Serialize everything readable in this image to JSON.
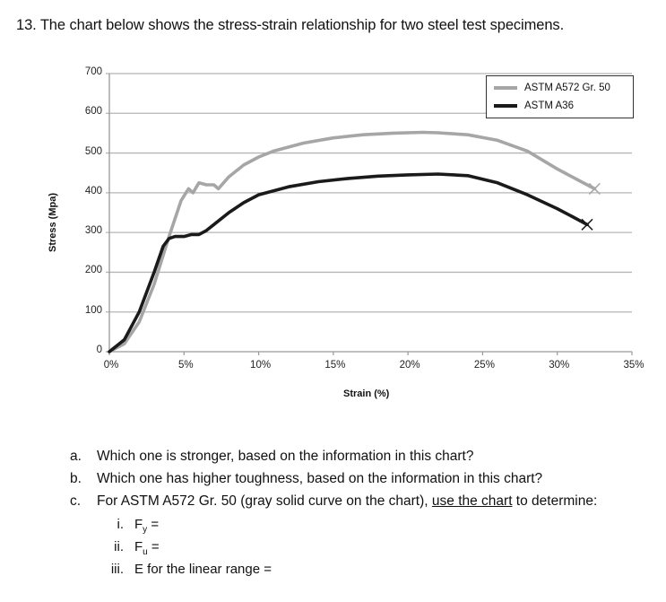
{
  "question": {
    "number": "13.",
    "prompt": "The chart below shows the stress-strain relationship for two steel test specimens."
  },
  "chart_data": {
    "type": "line",
    "title": "",
    "xlabel": "Strain (%)",
    "ylabel": "Stress (Mpa)",
    "xlim": [
      0,
      35
    ],
    "ylim": [
      0,
      700
    ],
    "x_ticks": [
      "0%",
      "5%",
      "10%",
      "15%",
      "20%",
      "25%",
      "30%",
      "35%"
    ],
    "y_ticks": [
      "0",
      "100",
      "200",
      "300",
      "400",
      "500",
      "600",
      "700"
    ],
    "grid": "horizontal",
    "legend_position": "top-right",
    "series": [
      {
        "name": "ASTM A572 Gr. 50",
        "color": "#a6a6a6",
        "end_marker": "x",
        "x": [
          0,
          1,
          2,
          3,
          4,
          4.8,
          5.3,
          5.6,
          6,
          6.5,
          7,
          7.3,
          8,
          9,
          10,
          11,
          13,
          15,
          17,
          19,
          21,
          22,
          24,
          26,
          28,
          30,
          31.5,
          32.5
        ],
        "y": [
          0,
          20,
          75,
          170,
          290,
          380,
          410,
          400,
          425,
          420,
          420,
          410,
          440,
          470,
          490,
          505,
          525,
          538,
          546,
          550,
          552,
          551,
          546,
          532,
          505,
          460,
          430,
          410
        ]
      },
      {
        "name": "ASTM A36",
        "color": "#1a1a1a",
        "end_marker": "x",
        "x": [
          0,
          1,
          2,
          3,
          3.6,
          4,
          4.4,
          5,
          5.5,
          6,
          6.5,
          7,
          8,
          9,
          10,
          12,
          14,
          16,
          18,
          20,
          22,
          24,
          26,
          28,
          30,
          31,
          32
        ],
        "y": [
          0,
          30,
          100,
          200,
          265,
          285,
          290,
          290,
          295,
          295,
          305,
          320,
          350,
          375,
          395,
          415,
          428,
          436,
          442,
          445,
          447,
          443,
          425,
          395,
          360,
          340,
          320
        ]
      }
    ]
  },
  "questions": [
    {
      "marker": "a.",
      "text": "Which one is stronger, based on the information in this chart?"
    },
    {
      "marker": "b.",
      "text": "Which one has higher toughness, based on the information in this chart?"
    },
    {
      "marker": "c.",
      "text_before": "For ASTM A572 Gr. 50 (gray solid curve on the chart), ",
      "text_underlined": "use the chart",
      "text_after": " to determine:"
    }
  ],
  "subquestions": [
    {
      "marker": "i.",
      "symbol": "F",
      "subscript": "y",
      "suffix": " ="
    },
    {
      "marker": "ii.",
      "symbol": "F",
      "subscript": "u",
      "suffix": " ="
    },
    {
      "marker": "iii.",
      "text": "E for the linear range ="
    }
  ]
}
